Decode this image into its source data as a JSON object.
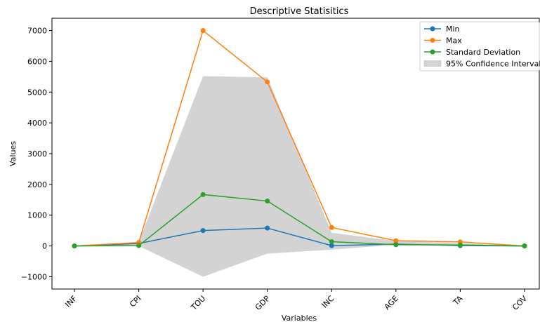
{
  "chart_data": {
    "type": "line",
    "title": "Descriptive Statisitics",
    "xlabel": "Variables",
    "ylabel": "Values",
    "categories": [
      "INF",
      "CPI",
      "TOU",
      "GDP",
      "INC",
      "AGE",
      "TA",
      "COV"
    ],
    "ylim": [
      -1400,
      7400
    ],
    "yticks": [
      -1000,
      0,
      1000,
      2000,
      3000,
      4000,
      5000,
      6000,
      7000
    ],
    "ytick_labels": [
      "−1000",
      "0",
      "1000",
      "2000",
      "3000",
      "4000",
      "5000",
      "6000",
      "7000"
    ],
    "grid": false,
    "legend_position": "top-right",
    "series": [
      {
        "name": "Min",
        "color": "#1f77b4",
        "values": [
          0,
          80,
          500,
          580,
          10,
          60,
          10,
          0
        ]
      },
      {
        "name": "Max",
        "color": "#ff7f0e",
        "values": [
          0,
          110,
          7000,
          5330,
          600,
          170,
          130,
          0
        ]
      },
      {
        "name": "Standard Deviation",
        "color": "#2ca02c",
        "values": [
          0,
          10,
          1670,
          1460,
          140,
          40,
          30,
          0
        ]
      }
    ],
    "band": {
      "name": "95% Confidence Interval",
      "color": "#d3d3d3",
      "lower": [
        0,
        0,
        -1000,
        -250,
        -120,
        40,
        20,
        0
      ],
      "upper": [
        0,
        130,
        5520,
        5480,
        430,
        160,
        90,
        0
      ]
    }
  }
}
